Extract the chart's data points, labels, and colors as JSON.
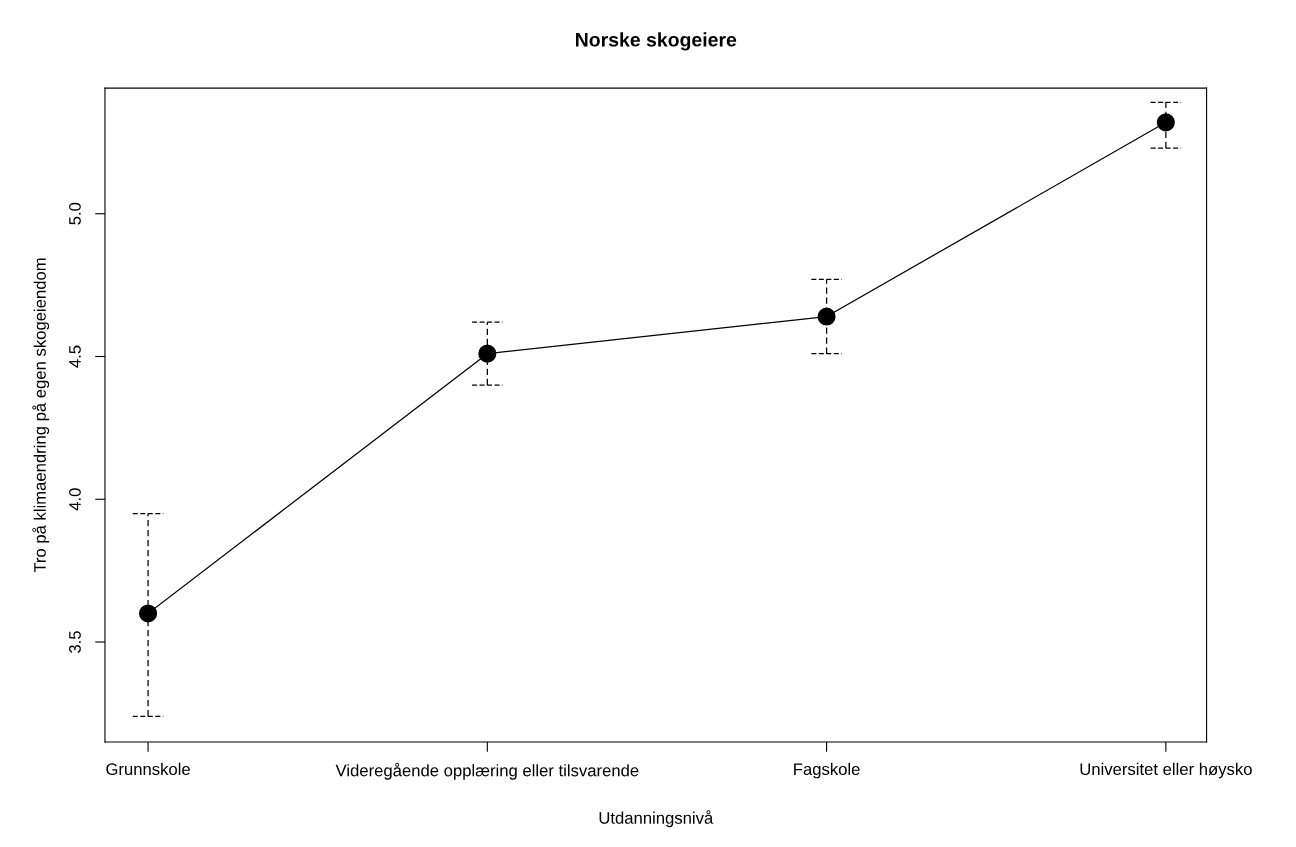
{
  "chart_data": {
    "type": "line",
    "title": "Norske skogeiere",
    "xlabel": "Utdanningsnivå",
    "ylabel": "Tro på klimaendring på egen skogeiendom",
    "categories": [
      "Grunnskole",
      "Videregående opplæring eller tilsvarende",
      "Fagskole",
      "Universitet eller høysko"
    ],
    "series": [
      {
        "color": "#000000",
        "values": [
          3.6,
          4.51,
          4.64,
          5.32
        ],
        "errors": [
          [
            3.24,
            3.95
          ],
          [
            4.4,
            4.62
          ],
          [
            4.51,
            4.77
          ],
          [
            5.23,
            5.39
          ]
        ]
      }
    ],
    "marker": "circle",
    "line_style": "solid",
    "ylim": [
      3.15,
      5.44
    ],
    "yticks": [
      3.5,
      {
        "value": 4,
        "label": "4.0"
      },
      4.5,
      {
        "value": 5,
        "label": "5.0"
      }
    ],
    "grid": false,
    "legend": false
  }
}
